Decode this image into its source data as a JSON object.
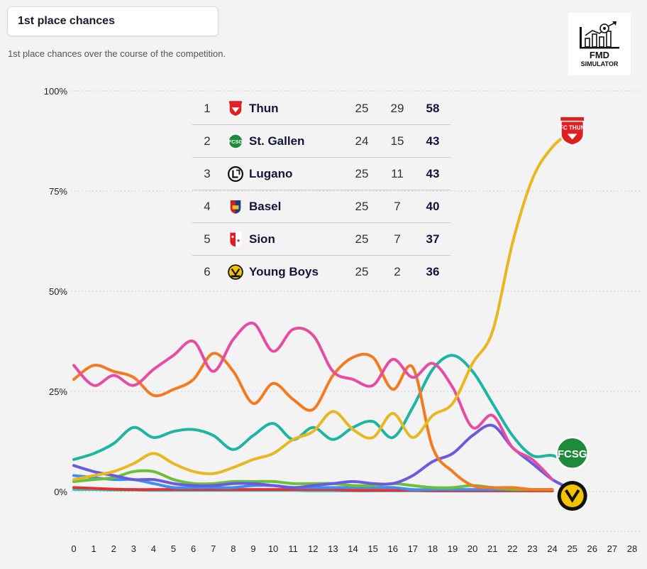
{
  "header": {
    "dropdown_label": "1st place chances",
    "subtitle": "1st place chances over the course of the competition."
  },
  "logo": {
    "line1": "FMD",
    "line2": "SIMULATOR"
  },
  "standings": [
    {
      "rank": "1",
      "team": "Thun",
      "a": "25",
      "b": "29",
      "pts": "58",
      "crest": "thun-crest-icon"
    },
    {
      "rank": "2",
      "team": "St. Gallen",
      "a": "24",
      "b": "15",
      "pts": "43",
      "crest": "st-gallen-crest-icon"
    },
    {
      "rank": "3",
      "team": "Lugano",
      "a": "25",
      "b": "11",
      "pts": "43",
      "crest": "lugano-crest-icon"
    },
    {
      "rank": "4",
      "team": "Basel",
      "a": "25",
      "b": "7",
      "pts": "40",
      "crest": "basel-crest-icon"
    },
    {
      "rank": "5",
      "team": "Sion",
      "a": "25",
      "b": "7",
      "pts": "37",
      "crest": "sion-crest-icon"
    },
    {
      "rank": "6",
      "team": "Young Boys",
      "a": "25",
      "b": "2",
      "pts": "36",
      "crest": "young-boys-crest-icon"
    }
  ],
  "chart_data": {
    "type": "line",
    "title": "",
    "xlabel": "",
    "ylabel": "",
    "x": [
      0,
      1,
      2,
      3,
      4,
      5,
      6,
      7,
      8,
      9,
      10,
      11,
      12,
      13,
      14,
      15,
      16,
      17,
      18,
      19,
      20,
      21,
      22,
      23,
      24,
      25
    ],
    "xticks": [
      "0",
      "1",
      "2",
      "3",
      "4",
      "5",
      "6",
      "7",
      "8",
      "9",
      "10",
      "11",
      "12",
      "13",
      "14",
      "15",
      "16",
      "17",
      "18",
      "19",
      "20",
      "21",
      "22",
      "23",
      "24",
      "25",
      "26",
      "27",
      "28"
    ],
    "xlim": [
      0,
      28
    ],
    "ylim": [
      -10,
      100
    ],
    "yticks": [
      0,
      25,
      50,
      75,
      100
    ],
    "ytick_labels": [
      "0%",
      "25%",
      "50%",
      "75%",
      "100%"
    ],
    "grid": "horizontal dotted",
    "series": [
      {
        "color": "#e8b820",
        "values": [
          3,
          4,
          5,
          7,
          9.5,
          7,
          5,
          4.5,
          6,
          8,
          9.5,
          13,
          15,
          20,
          15.5,
          13.5,
          19.5,
          13.5,
          19,
          22,
          32,
          40,
          62,
          78,
          86,
          90
        ]
      },
      {
        "color": "#e64da0",
        "values": [
          31.5,
          26.5,
          29,
          26.5,
          30.5,
          34,
          37.5,
          30,
          38,
          42,
          35,
          40.5,
          39,
          30,
          28,
          26.5,
          33,
          28.5,
          32,
          26,
          16,
          19,
          11,
          8,
          3,
          null
        ]
      },
      {
        "color": "#f57a1f",
        "values": [
          28,
          31.5,
          30,
          28.5,
          24,
          25.5,
          28,
          34.5,
          30,
          22,
          27,
          23,
          20.5,
          29,
          33.5,
          33.5,
          25.5,
          31,
          11,
          5,
          1.5,
          1,
          1,
          0.5,
          0.5,
          null
        ]
      },
      {
        "color": "#1fb5a3",
        "values": [
          8,
          9.5,
          12,
          16,
          13.5,
          15,
          15.5,
          14,
          10.5,
          14,
          17,
          13,
          16,
          13,
          16,
          17.5,
          13.5,
          21,
          30.5,
          34,
          30,
          22,
          14,
          9,
          9,
          7
        ]
      },
      {
        "color": "#6a5ae0",
        "values": [
          6.5,
          5,
          4,
          3,
          3,
          2,
          1.5,
          1.5,
          2,
          2,
          1.5,
          1,
          1.5,
          2,
          2.5,
          2,
          2,
          4,
          7.5,
          9.5,
          14,
          16.5,
          11,
          7,
          3,
          0.5
        ]
      },
      {
        "color": "#6bbf3a",
        "values": [
          2.5,
          3,
          3.5,
          5,
          5,
          3,
          2,
          2,
          2.5,
          2.5,
          2.5,
          2,
          2,
          2,
          1.5,
          1.5,
          2,
          1.5,
          1,
          1,
          1.5,
          1,
          0.5,
          0.5,
          0.5,
          null
        ]
      },
      {
        "color": "#3f8ff0",
        "values": [
          4,
          3.5,
          3,
          3,
          2,
          1,
          1,
          1,
          1,
          1.5,
          1.5,
          1,
          1,
          1,
          1,
          1,
          1,
          0.5,
          0.5,
          0.5,
          0.5,
          0.5,
          0.5,
          0.5,
          0.5,
          null
        ]
      },
      {
        "color": "#e83030",
        "values": [
          1,
          0.8,
          0.6,
          0.5,
          0.5,
          0.5,
          0.5,
          0.5,
          0.5,
          0.5,
          0.5,
          0.5,
          0.5,
          0.5,
          0.3,
          0.3,
          0.3,
          0.3,
          0.2,
          0.2,
          0.2,
          0.2,
          0.2,
          0.2,
          0.2,
          null
        ]
      },
      {
        "color": "#2ec9c0",
        "values": [
          0.5,
          0.5,
          0.4,
          0.4,
          0.3,
          0.3,
          0.3,
          0.3,
          0.3,
          0.3,
          0.3,
          0.3,
          0.2,
          0.2,
          0.2,
          0.2,
          0.2,
          0.2,
          0.2,
          0.2,
          0.2,
          0.2,
          0.2,
          0.2,
          0.2,
          null
        ]
      }
    ],
    "end_markers": [
      {
        "x": 25,
        "y": 90,
        "icon": "thun-crest-icon",
        "label": "FC THUN"
      },
      {
        "x": 25,
        "y": 5,
        "icon": "st-gallen-crest-icon",
        "label": "FCSG"
      },
      {
        "x": 25,
        "y": 0,
        "icon": "young-boys-crest-icon",
        "label": ""
      }
    ]
  }
}
